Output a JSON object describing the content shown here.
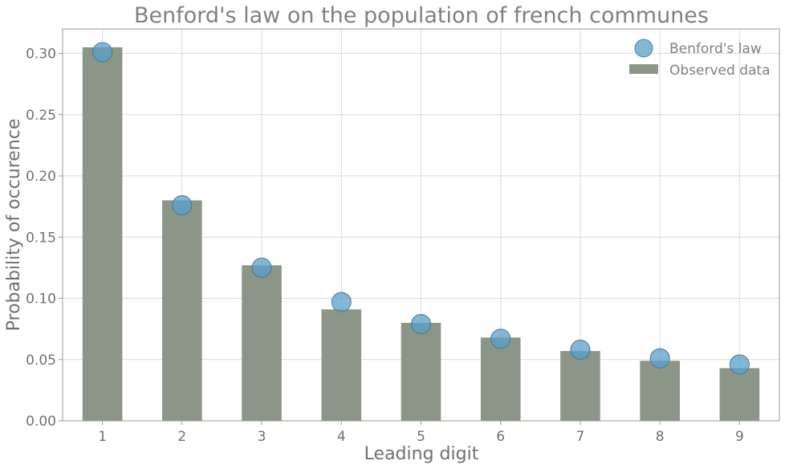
{
  "chart_data": {
    "type": "bar",
    "title": "Benford's law on the population of french communes",
    "xlabel": "Leading digit",
    "ylabel": "Probability of occurence",
    "categories": [
      "1",
      "2",
      "3",
      "4",
      "5",
      "6",
      "7",
      "8",
      "9"
    ],
    "series": [
      {
        "name": "Observed data",
        "type": "bar",
        "color": "#8b9688",
        "values": [
          0.305,
          0.18,
          0.127,
          0.091,
          0.08,
          0.068,
          0.057,
          0.049,
          0.043
        ]
      },
      {
        "name": "Benford's law",
        "type": "scatter",
        "color": "#5b9fc8",
        "values": [
          0.301,
          0.176,
          0.125,
          0.097,
          0.079,
          0.067,
          0.058,
          0.051,
          0.046
        ]
      }
    ],
    "ylim": [
      0,
      0.32
    ],
    "yticks": [
      "0.00",
      "0.05",
      "0.10",
      "0.15",
      "0.20",
      "0.25",
      "0.30"
    ],
    "grid": true,
    "legend": "top-right"
  }
}
